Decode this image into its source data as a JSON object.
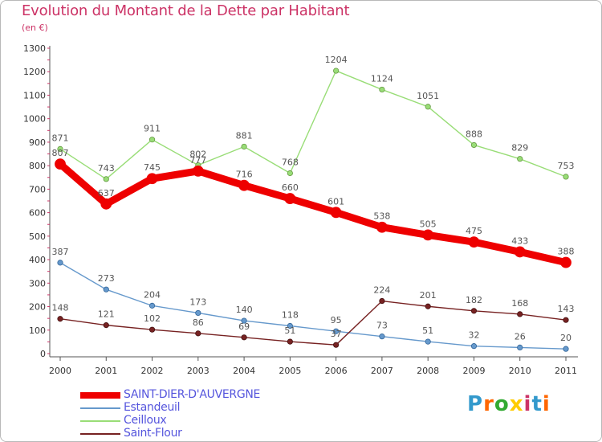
{
  "title": "Evolution du Montant de la Dette par Habitant",
  "subtitle": "(en €)",
  "logo": {
    "text": "Proxiti",
    "colors": [
      "#3399cc",
      "#ff6600",
      "#33aa33",
      "#ffcc00",
      "#cc3366",
      "#3399cc",
      "#ff6600"
    ]
  },
  "chart_data": {
    "type": "line",
    "x": [
      "2000",
      "2001",
      "2002",
      "2003",
      "2004",
      "2005",
      "2006",
      "2007",
      "2008",
      "2009",
      "2010",
      "2011"
    ],
    "ylim": [
      0,
      1300
    ],
    "yticks": [
      "0",
      "100",
      "200",
      "300",
      "400",
      "500",
      "600",
      "700",
      "800",
      "900",
      "1000",
      "1100",
      "1200",
      "1300"
    ],
    "grid": false,
    "legend_position": "bottom-left",
    "series": [
      {
        "name": "SAINT-DIER-D'AUVERGNE",
        "color": "#ee0000",
        "values": [
          807,
          637,
          745,
          777,
          716,
          660,
          601,
          538,
          505,
          475,
          433,
          388
        ],
        "labels": [
          "807",
          "637",
          "745",
          "777",
          "716",
          "660",
          "601",
          "538",
          "505",
          "475",
          "433",
          "388"
        ]
      },
      {
        "name": "Estandeuil",
        "color": "#6699cc",
        "values": [
          387,
          273,
          204,
          173,
          140,
          118,
          95,
          73,
          51,
          32,
          26,
          20
        ],
        "labels": [
          "387",
          "273",
          "204",
          "173",
          "140",
          "118",
          "95",
          "73",
          "51",
          "32",
          "26",
          "20"
        ]
      },
      {
        "name": "Ceilloux",
        "color": "#99dd77",
        "values": [
          871,
          743,
          911,
          802,
          881,
          768,
          1204,
          1124,
          1051,
          888,
          829,
          753
        ],
        "labels": [
          "871",
          "743",
          "911",
          "802",
          "881",
          "768",
          "1204",
          "1124",
          "1051",
          "888",
          "829",
          "753"
        ]
      },
      {
        "name": "Saint-Flour",
        "color": "#772222",
        "values": [
          148,
          121,
          102,
          86,
          69,
          51,
          37,
          224,
          201,
          182,
          168,
          143
        ],
        "labels": [
          "148",
          "121",
          "102",
          "86",
          "69",
          "51",
          "37",
          "224",
          "201",
          "182",
          "168",
          "143"
        ]
      }
    ]
  }
}
